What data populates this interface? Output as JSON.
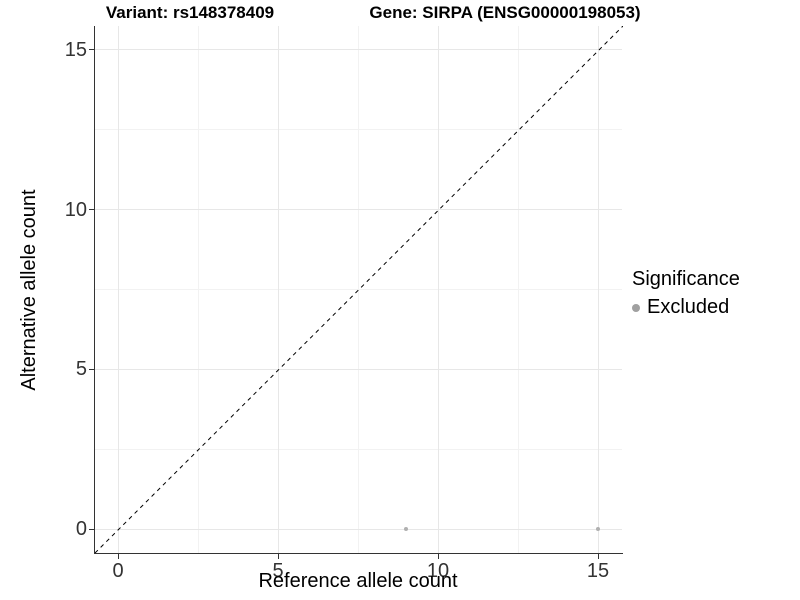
{
  "chart_data": {
    "type": "scatter",
    "title_left": "Variant: rs148378409",
    "title_right": "Gene: SIRPA (ENSG00000198053)",
    "xlabel": "Reference allele count",
    "ylabel": "Alternative allele count",
    "xlim": [
      -0.75,
      15.75
    ],
    "ylim": [
      -0.75,
      15.75
    ],
    "x_ticks": [
      0,
      5,
      10,
      15
    ],
    "y_ticks": [
      0,
      5,
      10,
      15
    ],
    "x_minor_ticks": [
      2.5,
      7.5,
      12.5
    ],
    "y_minor_ticks": [
      2.5,
      7.5,
      12.5
    ],
    "grid": true,
    "reference_line": {
      "type": "identity",
      "slope": 1,
      "intercept": 0,
      "style": "dashed"
    },
    "series": [
      {
        "name": "Excluded",
        "color": "#b0b0b0",
        "points": [
          {
            "x": 9,
            "y": 0
          },
          {
            "x": 15,
            "y": 0
          }
        ]
      }
    ],
    "legend": {
      "title": "Significance",
      "position": "right",
      "entries": [
        {
          "label": "Excluded",
          "color": "#a0a0a0"
        }
      ]
    },
    "style": {
      "grid_major_color": "#e7e7e7",
      "grid_minor_color": "#f2f2f2",
      "axis_color": "#333333",
      "tick_label_color": "#333333",
      "reference_line_color": "#000000",
      "background": "#ffffff"
    }
  }
}
